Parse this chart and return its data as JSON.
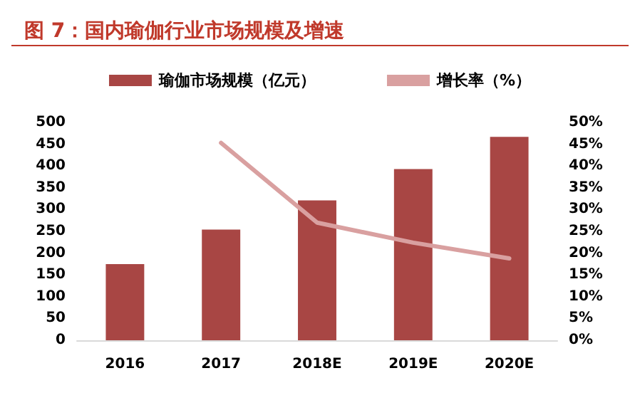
{
  "chart_data": {
    "type": "bar",
    "title": "图 7：国内瑜伽行业市场规模及增速",
    "categories": [
      "2016",
      "2017",
      "2018E",
      "2019E",
      "2020E"
    ],
    "series": [
      {
        "name": "瑜伽市场规模（亿元）",
        "color": "#a84644",
        "values": [
          175,
          254,
          321,
          393,
          467
        ]
      },
      {
        "name": "增长率（%）",
        "type": "line",
        "axis": "y2",
        "color": "#d9a0a0",
        "values": [
          null,
          45.3,
          27.0,
          22.4,
          18.8
        ]
      }
    ],
    "ylim": [
      0,
      500
    ],
    "yticks": [
      0,
      50,
      100,
      150,
      200,
      250,
      300,
      350,
      400,
      450,
      500
    ],
    "y2lim": [
      0,
      50
    ],
    "y2ticks": [
      {
        "value": 0,
        "label": "0%"
      },
      {
        "value": 5,
        "label": "5%"
      },
      {
        "value": 10,
        "label": "10%"
      },
      {
        "value": 15,
        "label": "15%"
      },
      {
        "value": 20,
        "label": "20%"
      },
      {
        "value": 25,
        "label": "25%"
      },
      {
        "value": 30,
        "label": "30%"
      },
      {
        "value": 35,
        "label": "35%"
      },
      {
        "value": 40,
        "label": "40%"
      },
      {
        "value": 45,
        "label": "45%"
      },
      {
        "value": 50,
        "label": "50%"
      }
    ],
    "grid": false,
    "legend": "top",
    "marker": "none"
  }
}
